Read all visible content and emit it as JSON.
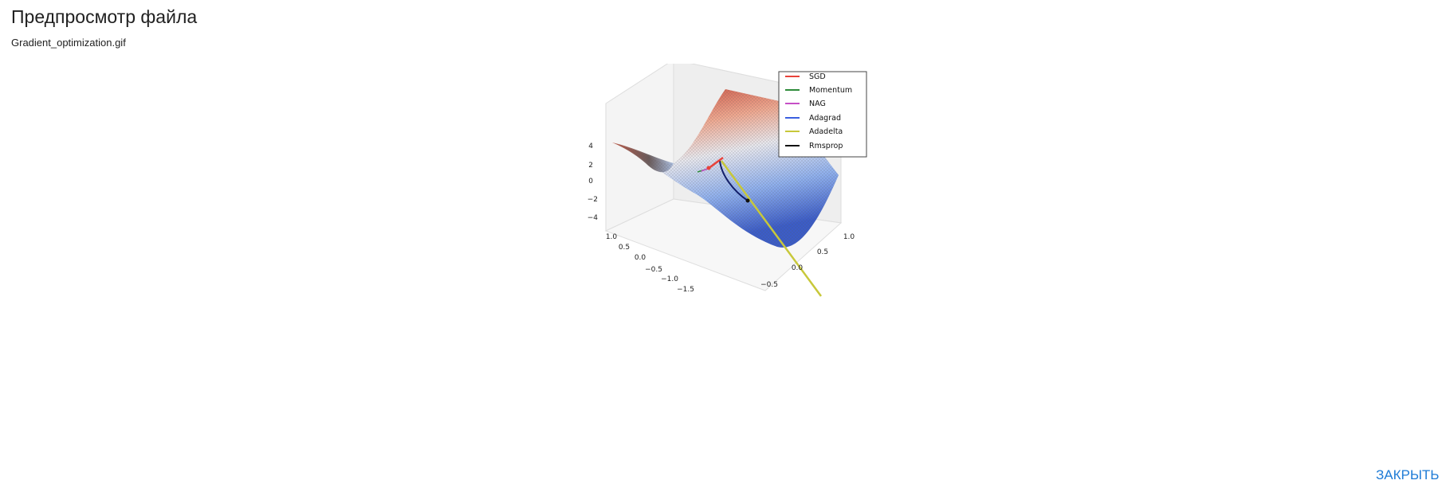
{
  "dialog": {
    "title": "Предпросмотр файла",
    "filename": "Gradient_optimization.gif",
    "close_label": "ЗАКРЫТЬ",
    "accent_color": "#1e7bd6"
  },
  "chart_data": {
    "type": "surface3d",
    "legend": [
      {
        "name": "SGD",
        "color": "#e8423a"
      },
      {
        "name": "Momentum",
        "color": "#2e8b3a"
      },
      {
        "name": "NAG",
        "color": "#c64fc6"
      },
      {
        "name": "Adagrad",
        "color": "#3b5fe0"
      },
      {
        "name": "Adadelta",
        "color": "#c8c83a"
      },
      {
        "name": "Rmsprop",
        "color": "#111111"
      }
    ],
    "legend_placement": "top-right",
    "z_ticks": [
      "4",
      "2",
      "0",
      "−2",
      "−4"
    ],
    "x_ticks": [
      "1.0",
      "0.5",
      "0.0",
      "−0.5",
      "−1.0",
      "−1.5"
    ],
    "y_ticks": [
      "1.0",
      "0.5",
      "0.0",
      "−0.5"
    ],
    "colormap": [
      "#b40426",
      "#f7f7f7",
      "#3b4cc0"
    ]
  }
}
